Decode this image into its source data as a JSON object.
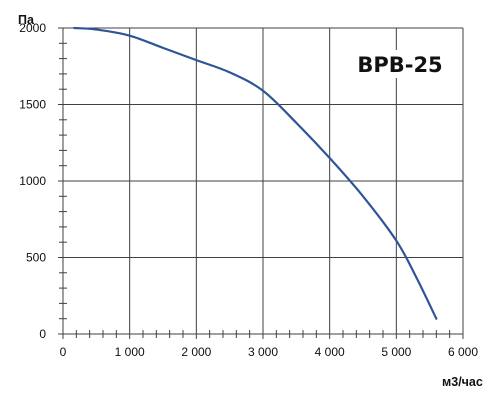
{
  "chart_data": {
    "type": "line",
    "title": "BPB-25",
    "ylabel": "Па",
    "xlabel": "м3/час",
    "xlim": [
      0,
      6000
    ],
    "ylim": [
      0,
      2000
    ],
    "grid": true,
    "x_ticks": [
      {
        "value": 0,
        "label": "0"
      },
      {
        "value": 1000,
        "label": "1 000"
      },
      {
        "value": 2000,
        "label": "2 000"
      },
      {
        "value": 3000,
        "label": "3 000"
      },
      {
        "value": 4000,
        "label": "4 000"
      },
      {
        "value": 5000,
        "label": "5 000"
      },
      {
        "value": 6000,
        "label": "6 000"
      }
    ],
    "y_ticks": [
      {
        "value": 0,
        "label": "0"
      },
      {
        "value": 500,
        "label": "500"
      },
      {
        "value": 1000,
        "label": "1000"
      },
      {
        "value": 1500,
        "label": "1500"
      },
      {
        "value": 2000,
        "label": "2000"
      }
    ],
    "series": [
      {
        "color": "#2f5597",
        "x": [
          170,
          500,
          1000,
          1500,
          2000,
          2500,
          3000,
          3500,
          4000,
          4500,
          5000,
          5300,
          5600
        ],
        "y": [
          2000,
          1990,
          1950,
          1870,
          1790,
          1710,
          1590,
          1380,
          1150,
          900,
          610,
          370,
          100
        ]
      }
    ]
  }
}
